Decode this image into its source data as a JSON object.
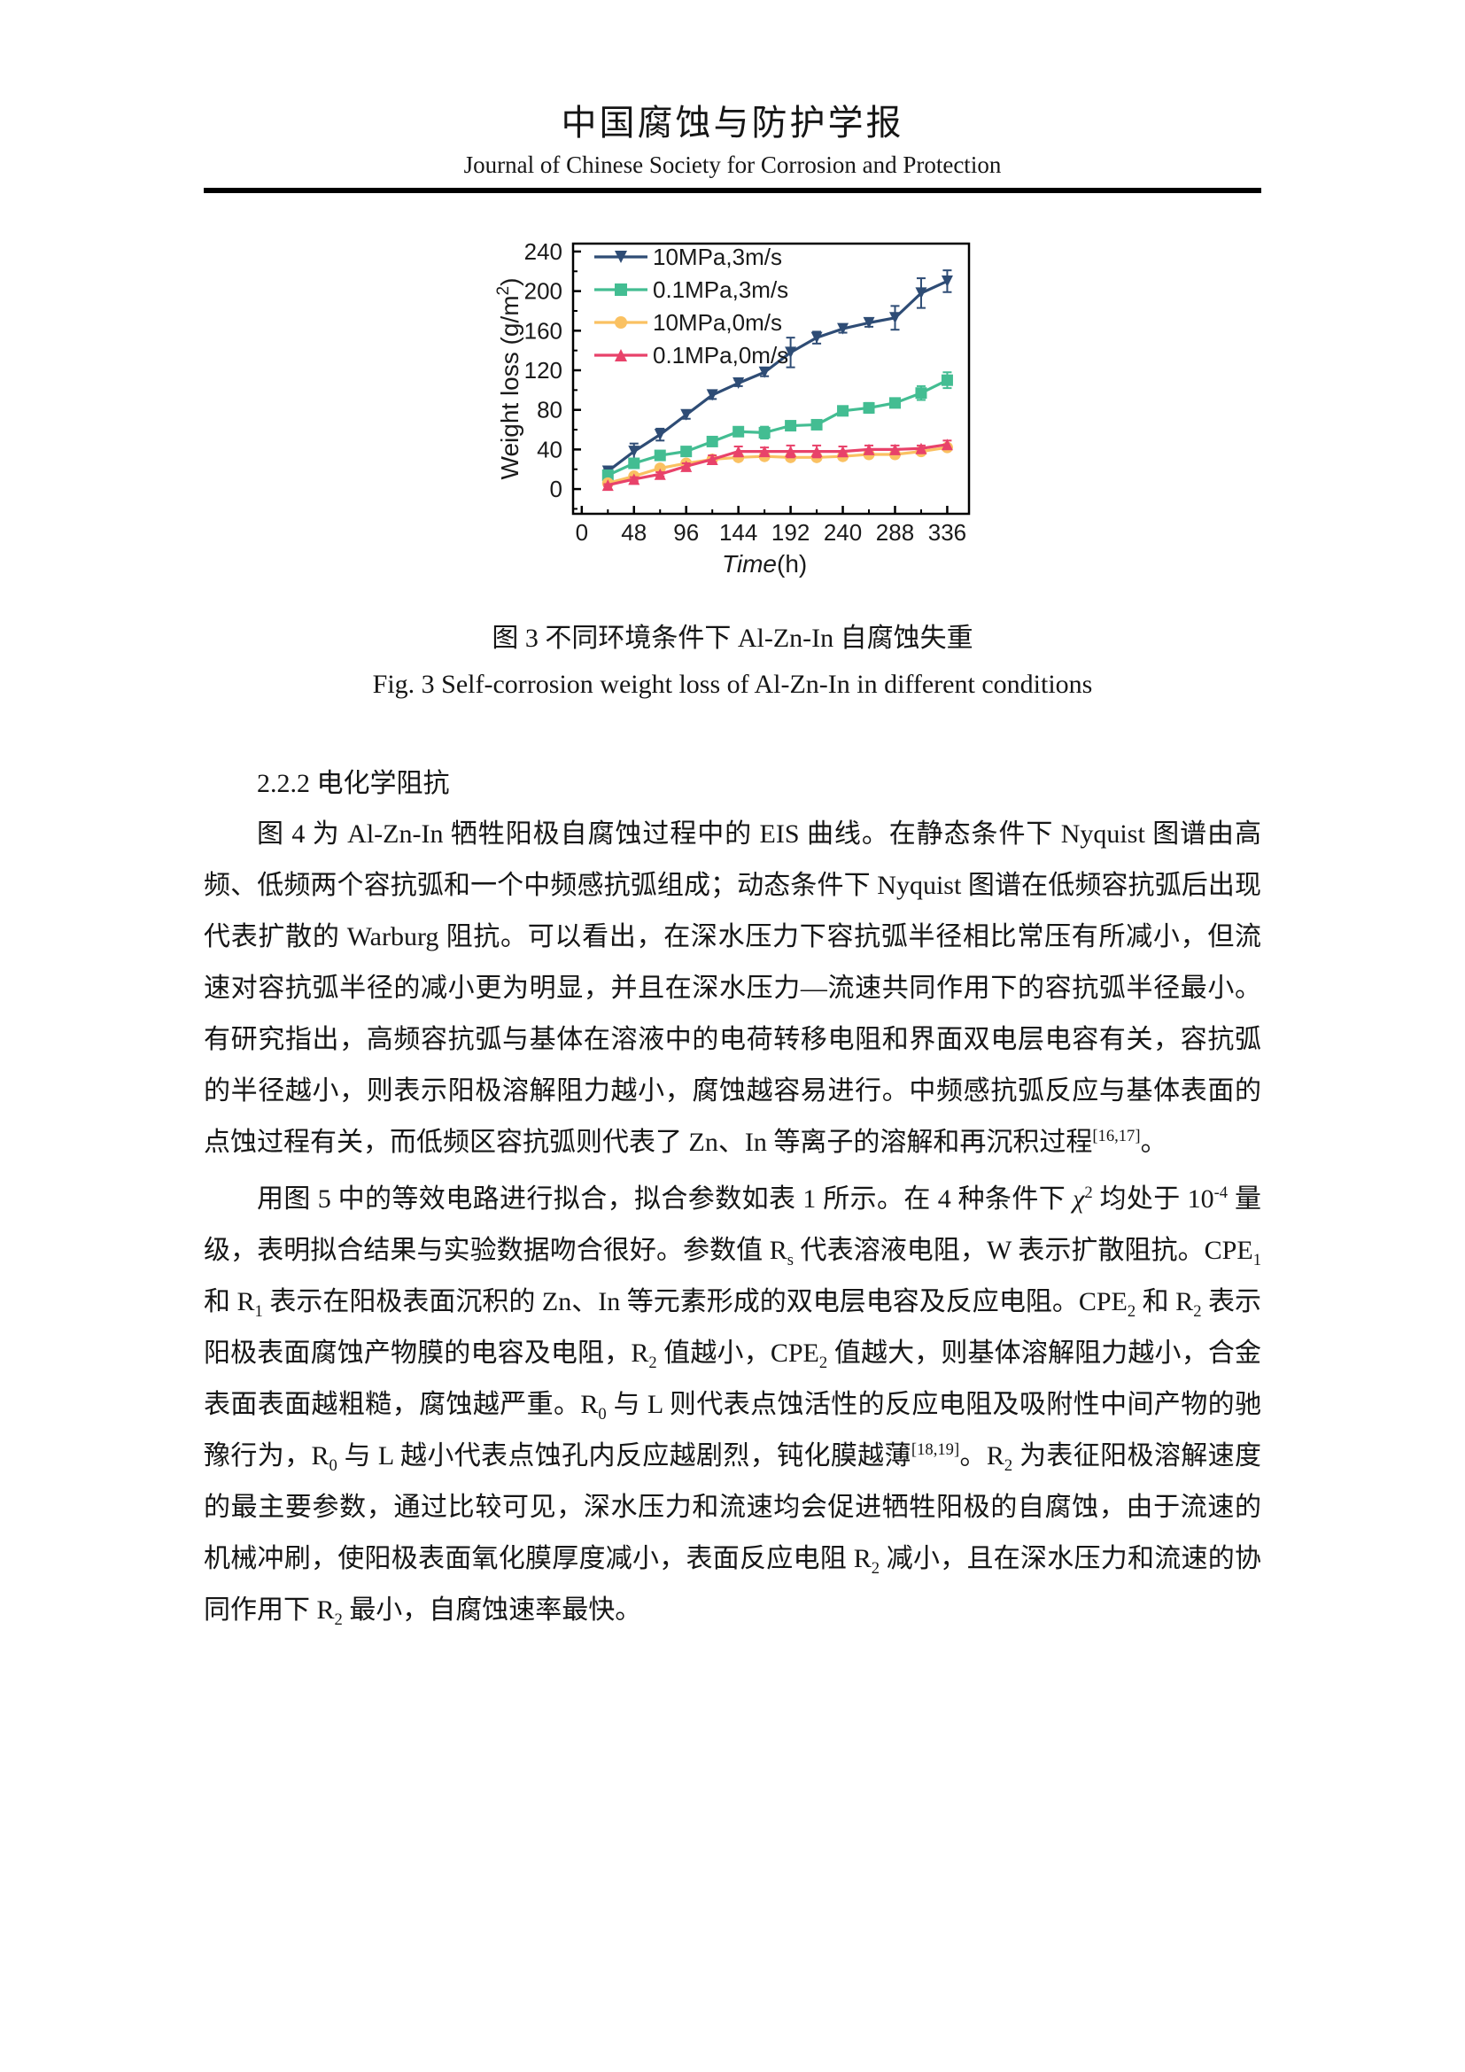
{
  "header": {
    "title_zh": "中国腐蚀与防护学报",
    "title_en": "Journal of Chinese Society for Corrosion and Protection"
  },
  "figure": {
    "caption_zh": "图 3 不同环境条件下 Al-Zn-In 自腐蚀失重",
    "caption_en": "Fig. 3 Self-corrosion weight loss of Al-Zn-In in different conditions"
  },
  "chart_data": {
    "type": "line",
    "title": "",
    "xlabel": {
      "italic": "Time",
      "rest": "(h)"
    },
    "ylabel": {
      "main": "Weight loss (g/m",
      "sup": "2",
      "end": ")"
    },
    "x": [
      24,
      48,
      72,
      96,
      120,
      144,
      168,
      192,
      216,
      240,
      264,
      288,
      312,
      336
    ],
    "xticks": [
      0,
      48,
      96,
      144,
      192,
      240,
      288,
      336
    ],
    "yticks": [
      0,
      40,
      80,
      120,
      160,
      200,
      240
    ],
    "x_minor_step": 24,
    "y_minor_step": 20,
    "xlim": [
      -8,
      356
    ],
    "ylim": [
      -25,
      248
    ],
    "grid": false,
    "legend_position": "top-left",
    "series": [
      {
        "name": "10MPa,3m/s",
        "color": "#2e4c75",
        "marker": "triangle-down",
        "values": [
          18,
          38,
          55,
          75,
          95,
          107,
          118,
          138,
          153,
          162,
          168,
          173,
          198,
          210
        ],
        "errors": [
          2,
          8,
          6,
          4,
          4,
          3,
          4,
          15,
          6,
          4,
          4,
          12,
          15,
          11
        ]
      },
      {
        "name": "0.1MPa,3m/s",
        "color": "#43bd92",
        "marker": "square",
        "values": [
          14,
          26,
          34,
          38,
          48,
          58,
          57,
          64,
          65,
          79,
          82,
          87,
          97,
          110
        ],
        "errors": [
          2,
          3,
          3,
          3,
          3,
          3,
          6,
          3,
          4,
          3,
          5,
          4,
          7,
          8
        ]
      },
      {
        "name": "10MPa,0m/s",
        "color": "#fac162",
        "marker": "circle",
        "values": [
          6,
          13,
          21,
          26,
          30,
          32,
          33,
          32,
          32,
          33,
          35,
          35,
          38,
          42
        ],
        "errors": [
          2,
          2,
          2,
          2,
          3,
          3,
          3,
          3,
          3,
          3,
          3,
          3,
          3,
          3
        ]
      },
      {
        "name": "0.1MPa,0m/s",
        "color": "#e8426a",
        "marker": "triangle-up",
        "values": [
          4,
          10,
          15,
          23,
          30,
          38,
          38,
          38,
          38,
          38,
          40,
          40,
          41,
          45
        ],
        "errors": [
          1,
          2,
          2,
          3,
          4,
          5,
          4,
          6,
          6,
          5,
          4,
          4,
          3,
          4
        ]
      }
    ]
  },
  "section": {
    "heading": "2.2.2  电化学阻抗",
    "paragraphs": [
      [
        {
          "t": "图 4 为 Al-Zn-In 牺牲阳极自腐蚀过程中的 EIS 曲线。在静态条件下 Nyquist 图谱由高频、低频两个容抗弧和一个中频感抗弧组成；动态条件下 Nyquist 图谱在低频容抗弧后出现代表扩散的 Warburg 阻抗。可以看出，在深水压力下容抗弧半径相比常压有所减小，但流速对容抗弧半径的减小更为明显，并且在深水压力—流速共同作用下的容抗弧半径最小。有研究指出，高频容抗弧与基体在溶液中的电荷转移电阻和界面双电层电容有关，容抗弧的半径越小，则表示阳极溶解阻力越小，腐蚀越容易进行。中频感抗弧反应与基体表面的点蚀过程有关，而低频区容抗弧则代表了 Zn、In 等离子的溶解和再沉积过程"
        },
        {
          "t": "[16,17]",
          "s": "sup"
        },
        {
          "t": "。"
        }
      ],
      [
        {
          "t": "用图 5 中的等效电路进行拟合，拟合参数如表 1 所示。在 4 种条件下 "
        },
        {
          "t": "χ",
          "s": "i"
        },
        {
          "t": "2",
          "s": "sup"
        },
        {
          "t": " 均处于 10"
        },
        {
          "t": "-4",
          "s": "sup"
        },
        {
          "t": " 量级，表明拟合结果与实验数据吻合很好。参数值 R"
        },
        {
          "t": "s",
          "s": "sub"
        },
        {
          "t": " 代表溶液电阻，W 表示扩散阻抗。CPE"
        },
        {
          "t": "1",
          "s": "sub"
        },
        {
          "t": " 和 R"
        },
        {
          "t": "1",
          "s": "sub"
        },
        {
          "t": " 表示在阳极表面沉积的 Zn、In 等元素形成的双电层电容及反应电阻。CPE"
        },
        {
          "t": "2",
          "s": "sub"
        },
        {
          "t": " 和 R"
        },
        {
          "t": "2",
          "s": "sub"
        },
        {
          "t": " 表示阳极表面腐蚀产物膜的电容及电阻，R"
        },
        {
          "t": "2",
          "s": "sub"
        },
        {
          "t": " 值越小，CPE"
        },
        {
          "t": "2",
          "s": "sub"
        },
        {
          "t": " 值越大，则基体溶解阻力越小，合金表面表面越粗糙，腐蚀越严重。R"
        },
        {
          "t": "0",
          "s": "sub"
        },
        {
          "t": " 与 L 则代表点蚀活性的反应电阻及吸附性中间产物的驰豫行为，R"
        },
        {
          "t": "0",
          "s": "sub"
        },
        {
          "t": " 与 L 越小代表点蚀孔内反应越剧烈，钝化膜越薄"
        },
        {
          "t": "[18,19]",
          "s": "sup"
        },
        {
          "t": "。R"
        },
        {
          "t": "2",
          "s": "sub"
        },
        {
          "t": " 为表征阳极溶解速度的最主要参数，通过比较可见，深水压力和流速均会促进牺牲阳极的自腐蚀，由于流速的机械冲刷，使阳极表面氧化膜厚度减小，表面反应电阻 R"
        },
        {
          "t": "2",
          "s": "sub"
        },
        {
          "t": " 减小，且在深水压力和流速的协同作用下 R"
        },
        {
          "t": "2",
          "s": "sub"
        },
        {
          "t": " 最小，自腐蚀速率最快。"
        }
      ]
    ]
  }
}
